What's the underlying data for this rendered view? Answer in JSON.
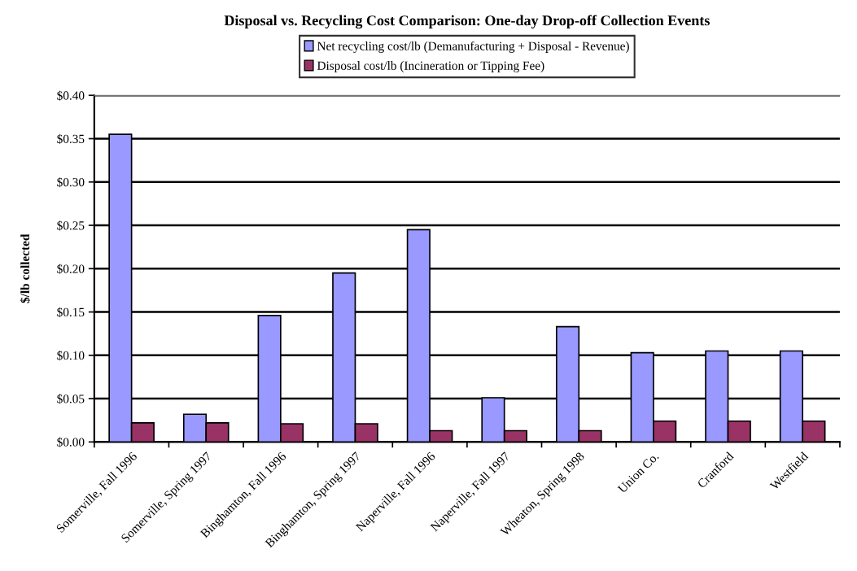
{
  "chart_data": {
    "type": "bar",
    "title": "Disposal vs. Recycling Cost Comparison: One-day Drop-off Collection Events",
    "ylabel": "$/lb collected",
    "categories": [
      "Somerville, Fall 1996",
      "Somerville, Spring 1997",
      "Binghamton, Fall 1996",
      "Binghamton, Spring 1997",
      "Naperville, Fall 1996",
      "Naperville, Fall 1997",
      "Wheaton, Spring 1998",
      "Union Co.",
      "Cranford",
      "Westfield"
    ],
    "series": [
      {
        "name": "Net recycling cost/lb (Demanufacturing + Disposal - Revenue)",
        "color": "#9999ff",
        "values": [
          0.355,
          0.032,
          0.146,
          0.195,
          0.245,
          0.051,
          0.133,
          0.103,
          0.105,
          0.105
        ]
      },
      {
        "name": "Disposal cost/lb (Incineration or Tipping Fee)",
        "color": "#993366",
        "values": [
          0.022,
          0.022,
          0.021,
          0.021,
          0.013,
          0.013,
          0.013,
          0.024,
          0.024,
          0.024
        ]
      }
    ],
    "ylim": [
      0,
      0.4
    ],
    "yticks": [
      {
        "value": 0,
        "label": "$0.00"
      },
      {
        "value": 0.05,
        "label": "$0.05"
      },
      {
        "value": 0.1,
        "label": "$0.10"
      },
      {
        "value": 0.15,
        "label": "$0.15"
      },
      {
        "value": 0.2,
        "label": "$0.20"
      },
      {
        "value": 0.25,
        "label": "$0.25"
      },
      {
        "value": 0.3,
        "label": "$0.30"
      },
      {
        "value": 0.35,
        "label": "$0.35"
      },
      {
        "value": 0.4,
        "label": "$0.40"
      }
    ],
    "grid": "y",
    "legend": "top"
  }
}
